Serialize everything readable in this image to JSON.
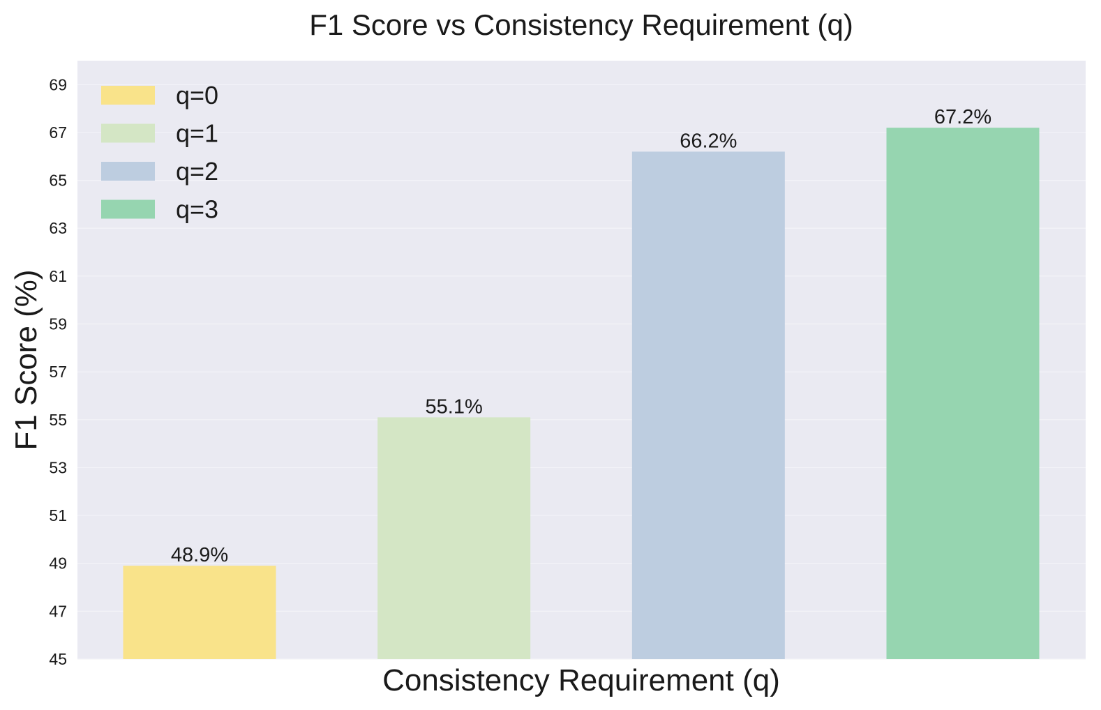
{
  "chart_data": {
    "type": "bar",
    "title": "F1 Score vs Consistency Requirement (q)",
    "xlabel": "Consistency Requirement (q)",
    "ylabel": "F1 Score (%)",
    "categories": [
      "q=0",
      "q=1",
      "q=2",
      "q=3"
    ],
    "values": [
      48.9,
      55.1,
      66.2,
      67.2
    ],
    "value_labels": [
      "48.9%",
      "55.1%",
      "66.2%",
      "67.2%"
    ],
    "colors": [
      "#f9e38a",
      "#d4e6c5",
      "#bdcde0",
      "#96d5b0"
    ],
    "ylim": [
      45,
      70
    ],
    "yticks": [
      45,
      47,
      49,
      51,
      53,
      55,
      57,
      59,
      61,
      63,
      65,
      67,
      69
    ],
    "grid": true,
    "legend": {
      "position": "top-left",
      "entries": [
        "q=0",
        "q=1",
        "q=2",
        "q=3"
      ]
    },
    "background": "#eaeaf2"
  }
}
